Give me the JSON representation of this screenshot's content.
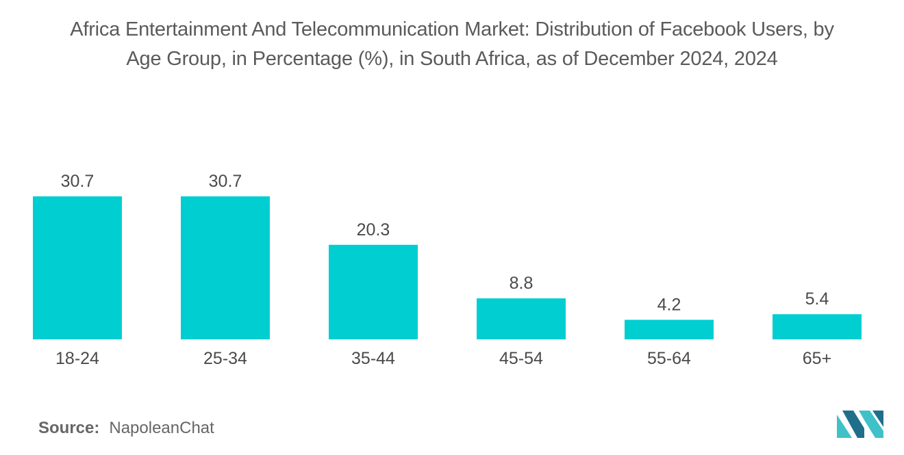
{
  "title": {
    "line1": "Africa Entertainment And Telecommunication Market: Distribution of Facebook Users, by",
    "line2": "Age Group, in Percentage (%), in South Africa, as of December 2024, 2024"
  },
  "source": {
    "label": "Source:",
    "value": "NapoleanChat"
  },
  "colors": {
    "bar": "#00CED1",
    "logo_dark": "#1F6F8B",
    "logo_light": "#3FC1C9"
  },
  "logo": {
    "icon": "mordor-intelligence-logo-icon"
  },
  "chart_data": {
    "type": "bar",
    "categories": [
      "18-24",
      "25-34",
      "35-44",
      "45-54",
      "55-64",
      "65+"
    ],
    "values": [
      30.7,
      30.7,
      20.3,
      8.8,
      4.2,
      5.4
    ],
    "value_labels": [
      "30.7",
      "30.7",
      "20.3",
      "8.8",
      "4.2",
      "5.4"
    ],
    "title": "Africa Entertainment And Telecommunication Market: Distribution of Facebook Users, by Age Group, in Percentage (%), in South Africa, as of December 2024, 2024",
    "xlabel": "",
    "ylabel": "",
    "ylim": [
      0,
      30.7
    ],
    "grid": false,
    "legend": "none"
  }
}
